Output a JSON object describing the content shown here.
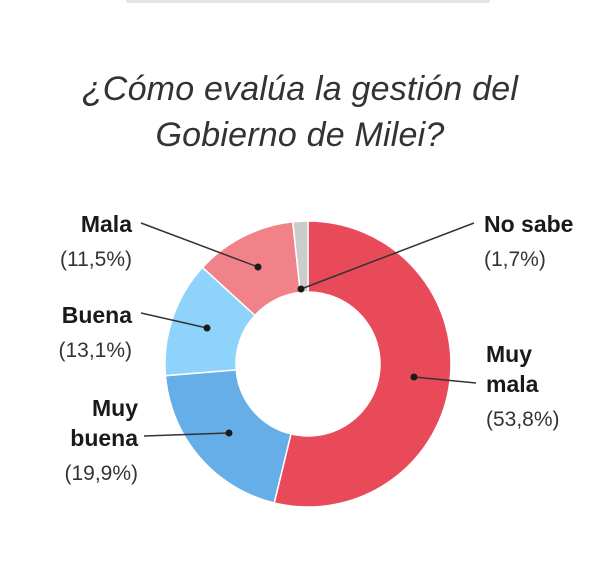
{
  "title_lines": [
    "¿Cómo evalúa la gestión del",
    "Gobierno de Milei?"
  ],
  "chart_data": {
    "type": "pie",
    "donut": true,
    "title": "¿Cómo evalúa la gestión del Gobierno de Milei?",
    "slices": [
      {
        "name_lines": [
          "Muy",
          "mala"
        ],
        "pct_label": "(53,8%)",
        "value": 53.8,
        "color": "#e84a5a"
      },
      {
        "name_lines": [
          "Muy",
          "buena"
        ],
        "pct_label": "(19,9%)",
        "value": 19.9,
        "color": "#66aee8"
      },
      {
        "name_lines": [
          "Buena"
        ],
        "pct_label": "(13,1%)",
        "value": 13.1,
        "color": "#8dd3fb"
      },
      {
        "name_lines": [
          "Mala"
        ],
        "pct_label": "(11,5%)",
        "value": 11.5,
        "color": "#f1828a"
      },
      {
        "name_lines": [
          "No sabe"
        ],
        "pct_label": "(1,7%)",
        "value": 1.7,
        "color": "#cccccc"
      }
    ]
  }
}
